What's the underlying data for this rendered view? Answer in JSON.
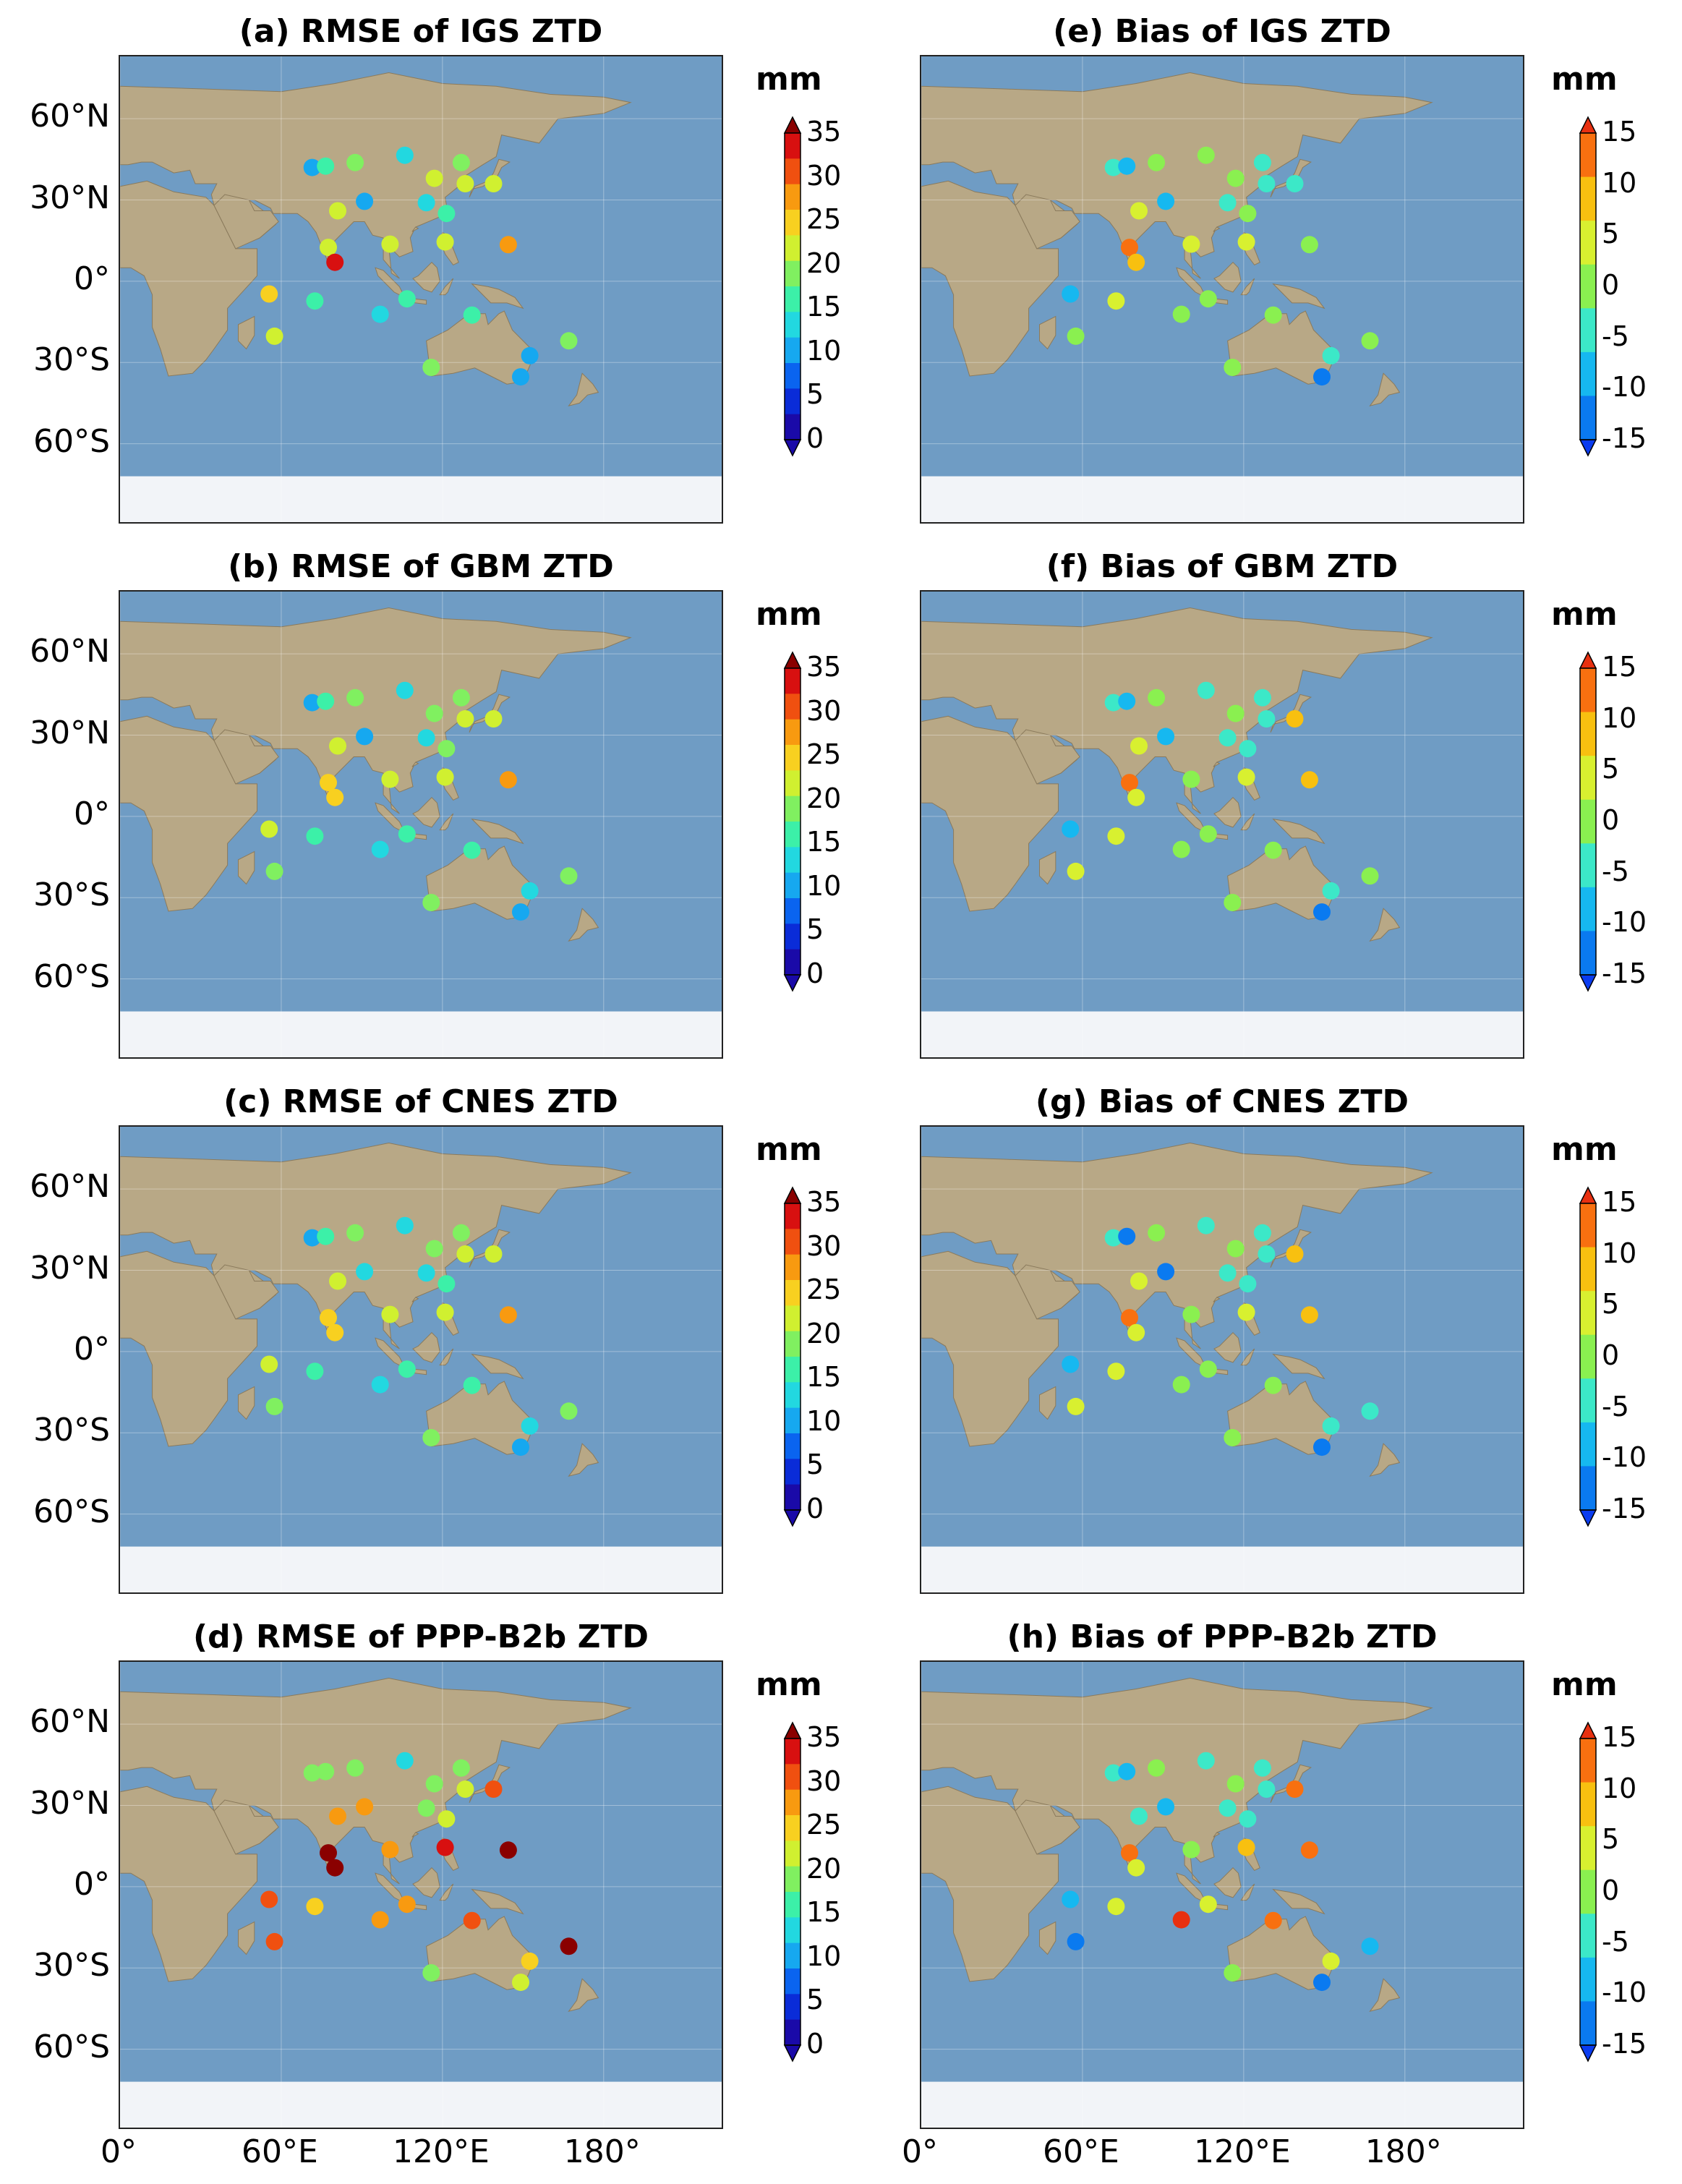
{
  "y_ticks": [
    "60°N",
    "30°N",
    "0°",
    "30°S",
    "60°S"
  ],
  "y_tick_lats": [
    60,
    30,
    0,
    -30,
    -60
  ],
  "x_ticks": [
    "0°",
    "60°E",
    "120°E",
    "180°"
  ],
  "x_tick_lons": [
    0,
    60,
    120,
    180
  ],
  "colors": {
    "rmse": [
      "#1a0aa8",
      "#0a2cd8",
      "#0a64f0",
      "#16a8f0",
      "#22d8e0",
      "#3cf0a8",
      "#80f060",
      "#d0f030",
      "#f8d020",
      "#f89a10",
      "#f05010",
      "#d81010",
      "#8a0000"
    ],
    "bias": [
      "#0a3cf0",
      "#0a7af0",
      "#16b8f0",
      "#3ce8c8",
      "#8af050",
      "#d8f030",
      "#f8c010",
      "#f87010",
      "#e83010"
    ],
    "ocean": "#6f9cc4",
    "land": "#b8a886",
    "ice": "#f2f4f8"
  },
  "colorbars": {
    "rmse": {
      "unit": "mm",
      "min": 0,
      "max": 38,
      "ticks": [
        "0",
        "5",
        "10",
        "15",
        "20",
        "25",
        "30",
        "35"
      ],
      "tick_values": [
        0,
        5,
        10,
        15,
        20,
        25,
        30,
        35
      ]
    },
    "bias": {
      "unit": "mm",
      "min": -17,
      "max": 17,
      "ticks": [
        "-15",
        "-10",
        "-5",
        "0",
        "5",
        "10",
        "15"
      ],
      "tick_values": [
        -15,
        -10,
        -5,
        0,
        5,
        10,
        15
      ]
    }
  },
  "stations": [
    {
      "lon": 71.5,
      "lat": 42.0
    },
    {
      "lon": 76.5,
      "lat": 42.5
    },
    {
      "lon": 87.5,
      "lat": 43.8
    },
    {
      "lon": 106.0,
      "lat": 46.5
    },
    {
      "lon": 127.0,
      "lat": 43.8
    },
    {
      "lon": 117.0,
      "lat": 38.0
    },
    {
      "lon": 114.0,
      "lat": 29.0
    },
    {
      "lon": 121.5,
      "lat": 25.0
    },
    {
      "lon": 128.5,
      "lat": 36.0
    },
    {
      "lon": 139.0,
      "lat": 36.0
    },
    {
      "lon": 91.0,
      "lat": 29.5
    },
    {
      "lon": 81.0,
      "lat": 26.0
    },
    {
      "lon": 77.5,
      "lat": 12.5
    },
    {
      "lon": 80.0,
      "lat": 7.0
    },
    {
      "lon": 100.5,
      "lat": 13.7
    },
    {
      "lon": 121.0,
      "lat": 14.5
    },
    {
      "lon": 144.5,
      "lat": 13.5
    },
    {
      "lon": 55.5,
      "lat": -4.7
    },
    {
      "lon": 72.5,
      "lat": -7.3
    },
    {
      "lon": 106.8,
      "lat": -6.5
    },
    {
      "lon": 96.8,
      "lat": -12.2
    },
    {
      "lon": 57.5,
      "lat": -20.3
    },
    {
      "lon": 131.0,
      "lat": -12.5
    },
    {
      "lon": 115.8,
      "lat": -31.8
    },
    {
      "lon": 149.1,
      "lat": -35.3
    },
    {
      "lon": 152.5,
      "lat": -27.5
    },
    {
      "lon": 167.0,
      "lat": -22.0
    }
  ],
  "panels": [
    {
      "title": "(a) RMSE of IGS ZTD",
      "kind": "rmse",
      "values": [
        10,
        17,
        18,
        13,
        19,
        21,
        12,
        17,
        21,
        23,
        11,
        22,
        23,
        33,
        23,
        21,
        29,
        24,
        17,
        17,
        14,
        21,
        15,
        18,
        11,
        11,
        19
      ]
    },
    {
      "title": "(e) Bias of IGS ZTD",
      "kind": "bias",
      "values": [
        -3,
        -7,
        -1,
        0,
        -2,
        -1,
        -2,
        -1,
        -4,
        -3,
        -7,
        4,
        10,
        9,
        4,
        2,
        0,
        -7,
        3,
        0,
        -1,
        1,
        -1,
        -1,
        -10,
        -2,
        0
      ]
    },
    {
      "title": "(b) RMSE of GBM ZTD",
      "kind": "rmse",
      "values": [
        11,
        17,
        19,
        13,
        20,
        20,
        14,
        18,
        21,
        22,
        11,
        23,
        25,
        25,
        22,
        22,
        28,
        23,
        17,
        17,
        14,
        20,
        16,
        18,
        11,
        12,
        19
      ]
    },
    {
      "title": "(f) Bias of GBM ZTD",
      "kind": "bias",
      "values": [
        -3,
        -9,
        -1,
        -2,
        -2,
        -1,
        -3,
        -3,
        -4,
        6,
        -9,
        3,
        11,
        2,
        1,
        2,
        7,
        -8,
        3,
        0,
        -1,
        2,
        -1,
        -1,
        -10,
        -2,
        -1
      ]
    },
    {
      "title": "(c) RMSE of CNES ZTD",
      "kind": "rmse",
      "values": [
        11,
        17,
        19,
        13,
        20,
        20,
        13,
        17,
        21,
        22,
        12,
        23,
        25,
        25,
        22,
        22,
        29,
        23,
        17,
        17,
        14,
        20,
        16,
        18,
        11,
        12,
        19
      ]
    },
    {
      "title": "(g) Bias of CNES ZTD",
      "kind": "bias",
      "values": [
        -3,
        -11,
        -1,
        -2,
        -2,
        -1,
        -3,
        -3,
        -4,
        6,
        -12,
        2,
        12,
        2,
        1,
        2,
        6,
        -8,
        3,
        0,
        -1,
        2,
        -1,
        -1,
        -11,
        -2,
        -2
      ]
    },
    {
      "title": "(d) RMSE of PPP-B2b ZTD",
      "kind": "rmse",
      "values": [
        19,
        20,
        20,
        14,
        20,
        20,
        18,
        22,
        22,
        32,
        27,
        28,
        36,
        37,
        28,
        34,
        38,
        32,
        26,
        28,
        27,
        31,
        30,
        20,
        22,
        25,
        38
      ]
    },
    {
      "title": "(h) Bias of PPP-B2b ZTD",
      "kind": "bias",
      "values": [
        -3,
        -7,
        -1,
        -2,
        -2,
        -1,
        -3,
        -3,
        -4,
        12,
        -8,
        -2,
        10,
        2,
        1,
        7,
        11,
        -8,
        5,
        5,
        14,
        -13,
        11,
        -1,
        -10,
        3,
        -8
      ]
    }
  ]
}
